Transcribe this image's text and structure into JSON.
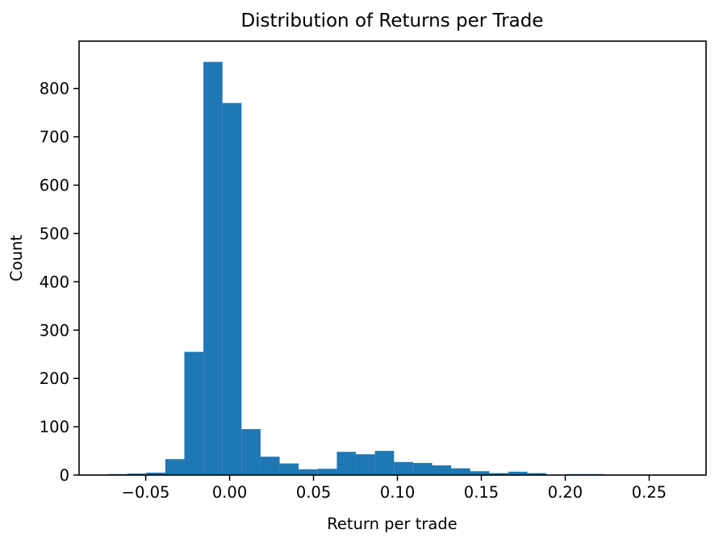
{
  "chart_data": {
    "type": "bar",
    "subtype": "histogram",
    "title": "Distribution of Returns per Trade",
    "xlabel": "Return per trade",
    "ylabel": "Count",
    "bar_color": "#1f77b4",
    "axis_color": "#000000",
    "background_color": "#ffffff",
    "grid": false,
    "bin_start": -0.0724,
    "bin_width": 0.011357,
    "counts": [
      2,
      3,
      5,
      33,
      255,
      855,
      770,
      95,
      38,
      24,
      12,
      13,
      48,
      43,
      50,
      27,
      25,
      20,
      14,
      8,
      4,
      7,
      4,
      0,
      2,
      2,
      0
    ],
    "xlim": [
      -0.0897,
      0.2839
    ],
    "ylim": [
      0,
      898
    ],
    "x_ticks": [
      -0.05,
      0.0,
      0.05,
      0.1,
      0.15,
      0.2,
      0.25
    ],
    "x_tick_labels": [
      "−0.05",
      "0.00",
      "0.05",
      "0.10",
      "0.15",
      "0.20",
      "0.25"
    ],
    "y_ticks": [
      0,
      100,
      200,
      300,
      400,
      500,
      600,
      700,
      800
    ],
    "y_tick_labels": [
      "0",
      "100",
      "200",
      "300",
      "400",
      "500",
      "600",
      "700",
      "800"
    ]
  }
}
